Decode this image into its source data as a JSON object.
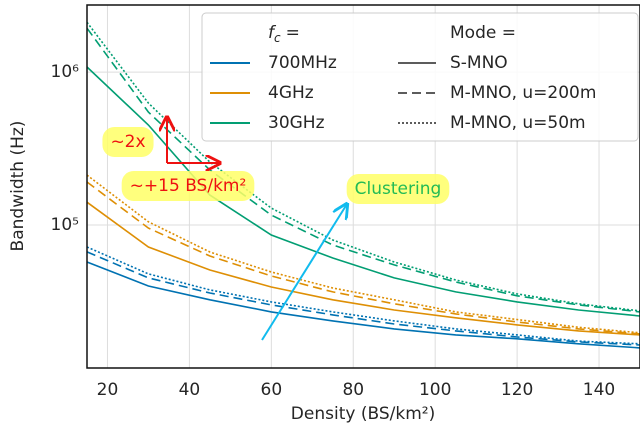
{
  "chart_data": {
    "type": "line",
    "x_label": "Density (BS/km²)",
    "y_label": "Bandwidth (Hz)",
    "x": [
      15,
      30,
      45,
      60,
      75,
      90,
      105,
      120,
      135,
      150
    ],
    "xlim": [
      15,
      150
    ],
    "xticks": [
      20,
      40,
      60,
      80,
      100,
      120,
      140
    ],
    "ylim": [
      11600,
      2750000
    ],
    "log_y": true,
    "grid": true,
    "yticks": [
      {
        "value": 100000,
        "label": "10⁵"
      },
      {
        "value": 1000000,
        "label": "10⁶"
      }
    ],
    "series": [
      {
        "color": "#0072b2",
        "dash": "solid",
        "values": [
          57300,
          39900,
          32400,
          27000,
          23600,
          20900,
          19100,
          18000,
          16700,
          15700
        ]
      },
      {
        "color": "#0072b2",
        "dash": "dashed",
        "values": [
          66700,
          45100,
          35900,
          30000,
          25800,
          22500,
          20300,
          18500,
          17200,
          16400
        ]
      },
      {
        "color": "#0072b2",
        "dash": "dotted",
        "values": [
          71800,
          47900,
          37600,
          31400,
          27000,
          23600,
          20900,
          19100,
          17400,
          16700
        ]
      },
      {
        "color": "#de8f05",
        "dash": "solid",
        "values": [
          141000,
          71800,
          50800,
          39300,
          32400,
          27800,
          24700,
          22200,
          20300,
          19100
        ]
      },
      {
        "color": "#de8f05",
        "dash": "dashed",
        "values": [
          191000,
          95500,
          62700,
          46400,
          36500,
          30500,
          26200,
          23200,
          20900,
          19400
        ]
      },
      {
        "color": "#de8f05",
        "dash": "dotted",
        "values": [
          212000,
          105000,
          66600,
          49300,
          38700,
          32400,
          27000,
          24100,
          21400,
          19700
        ]
      },
      {
        "color": "#029e73",
        "dash": "solid",
        "values": [
          1080000,
          451000,
          157000,
          86000,
          60800,
          45100,
          36500,
          31400,
          27800,
          25400
        ]
      },
      {
        "color": "#029e73",
        "dash": "dashed",
        "values": [
          1940000,
          548000,
          229000,
          116000,
          74000,
          54800,
          42400,
          34400,
          30000,
          27000
        ]
      },
      {
        "color": "#029e73",
        "dash": "dotted",
        "values": [
          2120000,
          627000,
          258000,
          129000,
          79800,
          57300,
          43700,
          35400,
          30500,
          27400
        ]
      }
    ],
    "legend": {
      "color_title": {
        "symbol": "f",
        "subscript": "c",
        "suffix": "="
      },
      "colors": [
        {
          "name": "700MHz",
          "color": "#0072b2"
        },
        {
          "name": "4GHz",
          "color": "#de8f05"
        },
        {
          "name": "30GHz",
          "color": "#029e73"
        }
      ],
      "style_title": "Mode =",
      "styles": [
        {
          "name": "S-MNO",
          "dash": "solid"
        },
        {
          "name": "M-MNO, u=200m",
          "dash": "dashed"
        },
        {
          "name": "M-MNO, u=50m",
          "dash": "dotted"
        }
      ]
    },
    "annotations": [
      {
        "text": "~2x",
        "color": "#ee1111"
      },
      {
        "text": "~+15 BS/km²",
        "color": "#ee1111"
      },
      {
        "text": "Clustering",
        "color": "#22bb55"
      }
    ]
  }
}
